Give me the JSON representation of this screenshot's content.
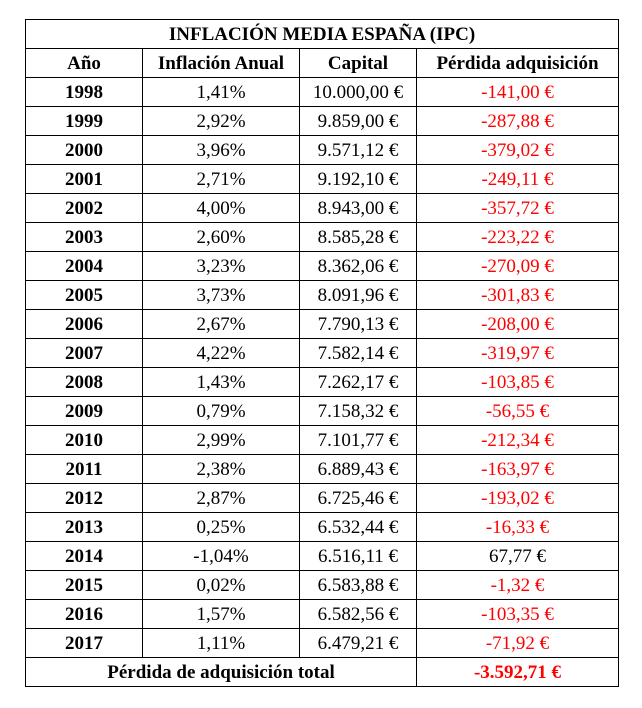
{
  "title": "INFLACIÓN MEDIA ESPAÑA (IPC)",
  "headers": [
    "Año",
    "Inflación Anual",
    "Capital",
    "Pérdida adquisición"
  ],
  "rows": [
    {
      "year": "1998",
      "inflation": "1,41%",
      "capital": "10.000,00 €",
      "loss": "-141,00 €",
      "negative": true
    },
    {
      "year": "1999",
      "inflation": "2,92%",
      "capital": "9.859,00 €",
      "loss": "-287,88 €",
      "negative": true
    },
    {
      "year": "2000",
      "inflation": "3,96%",
      "capital": "9.571,12 €",
      "loss": "-379,02 €",
      "negative": true
    },
    {
      "year": "2001",
      "inflation": "2,71%",
      "capital": "9.192,10 €",
      "loss": "-249,11 €",
      "negative": true
    },
    {
      "year": "2002",
      "inflation": "4,00%",
      "capital": "8.943,00 €",
      "loss": "-357,72 €",
      "negative": true
    },
    {
      "year": "2003",
      "inflation": "2,60%",
      "capital": "8.585,28 €",
      "loss": "-223,22 €",
      "negative": true
    },
    {
      "year": "2004",
      "inflation": "3,23%",
      "capital": "8.362,06 €",
      "loss": "-270,09 €",
      "negative": true
    },
    {
      "year": "2005",
      "inflation": "3,73%",
      "capital": "8.091,96 €",
      "loss": "-301,83 €",
      "negative": true
    },
    {
      "year": "2006",
      "inflation": "2,67%",
      "capital": "7.790,13 €",
      "loss": "-208,00 €",
      "negative": true
    },
    {
      "year": "2007",
      "inflation": "4,22%",
      "capital": "7.582,14 €",
      "loss": "-319,97 €",
      "negative": true
    },
    {
      "year": "2008",
      "inflation": "1,43%",
      "capital": "7.262,17 €",
      "loss": "-103,85 €",
      "negative": true
    },
    {
      "year": "2009",
      "inflation": "0,79%",
      "capital": "7.158,32 €",
      "loss": "-56,55 €",
      "negative": true
    },
    {
      "year": "2010",
      "inflation": "2,99%",
      "capital": "7.101,77 €",
      "loss": "-212,34 €",
      "negative": true
    },
    {
      "year": "2011",
      "inflation": "2,38%",
      "capital": "6.889,43 €",
      "loss": "-163,97 €",
      "negative": true
    },
    {
      "year": "2012",
      "inflation": "2,87%",
      "capital": "6.725,46 €",
      "loss": "-193,02 €",
      "negative": true
    },
    {
      "year": "2013",
      "inflation": "0,25%",
      "capital": "6.532,44 €",
      "loss": "-16,33 €",
      "negative": true
    },
    {
      "year": "2014",
      "inflation": "-1,04%",
      "capital": "6.516,11 €",
      "loss": "67,77 €",
      "negative": false
    },
    {
      "year": "2015",
      "inflation": "0,02%",
      "capital": "6.583,88 €",
      "loss": "-1,32 €",
      "negative": true
    },
    {
      "year": "2016",
      "inflation": "1,57%",
      "capital": "6.582,56 €",
      "loss": "-103,35 €",
      "negative": true
    },
    {
      "year": "2017",
      "inflation": "1,11%",
      "capital": "6.479,21 €",
      "loss": "-71,92 €",
      "negative": true
    }
  ],
  "total": {
    "label": "Pérdida de adquisición total",
    "value": "-3.592,71 €"
  },
  "colors": {
    "negative": "#ff0000",
    "positive": "#000000"
  }
}
